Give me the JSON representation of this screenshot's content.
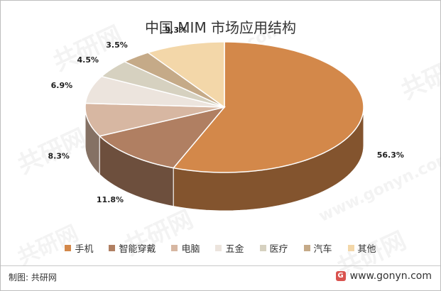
{
  "title": "中国 MIM 市场应用结构",
  "footer": {
    "source_label": "制图: 共研网",
    "site_url": "www.gonyn.com"
  },
  "watermark": {
    "text": "共研网",
    "subtext": "www.gonyn.com"
  },
  "colors": {
    "background": "#ffffff",
    "label_text": "#1f1f1f"
  },
  "chart_data": {
    "type": "pie",
    "style": "3d",
    "title": "中国 MIM 市场应用结构",
    "legend_position": "bottom",
    "slices": [
      {
        "name": "手机",
        "value": 56.3,
        "label": "56.3%",
        "color": "#d3884a"
      },
      {
        "name": "智能穿戴",
        "value": 11.8,
        "label": "11.8%",
        "color": "#b07f62"
      },
      {
        "name": "电脑",
        "value": 8.3,
        "label": "8.3%",
        "color": "#d7b7a2"
      },
      {
        "name": "五金",
        "value": 6.9,
        "label": "6.9%",
        "color": "#ece4dd"
      },
      {
        "name": "医疗",
        "value": 4.5,
        "label": "4.5%",
        "color": "#d6d1c0"
      },
      {
        "name": "汽车",
        "value": 3.5,
        "label": "3.5%",
        "color": "#c5aa88"
      },
      {
        "name": "其他",
        "value": 9.3,
        "label": "9.3%",
        "color": "#f3d7a9"
      }
    ]
  }
}
